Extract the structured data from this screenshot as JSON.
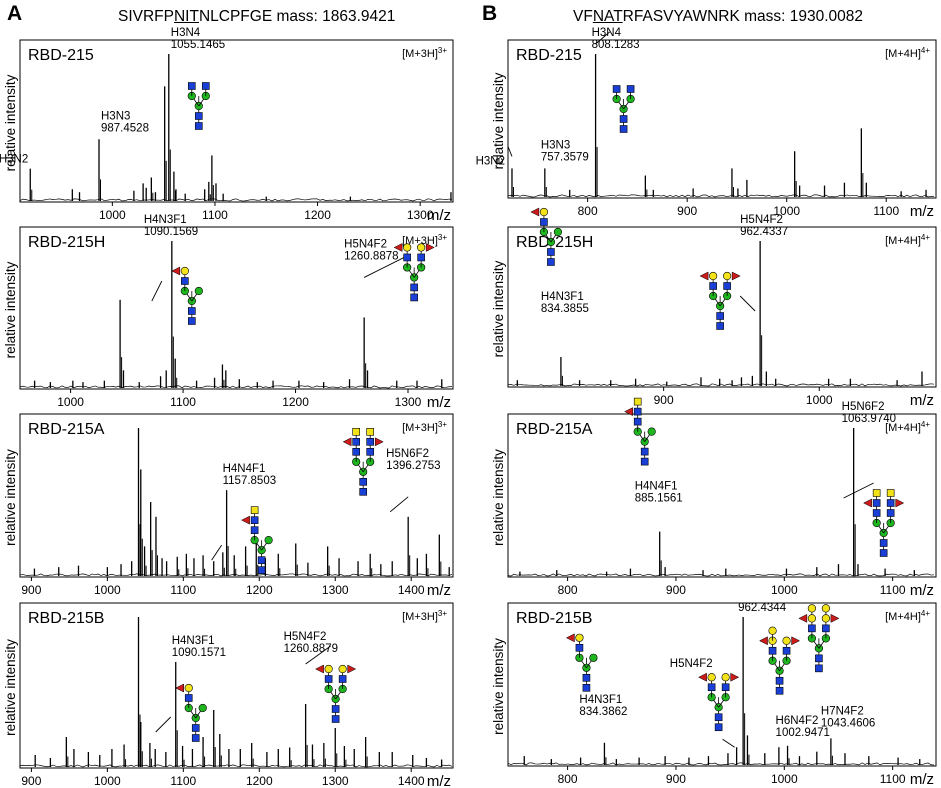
{
  "figure": {
    "col_A": {
      "letter": "A",
      "title_pre": "SIVRFP",
      "title_seq": "NIT",
      "title_post": "NLCPFGE mass: 1863.9421"
    },
    "col_B": {
      "letter": "B",
      "title_pre": "VF",
      "title_seq": "NAT",
      "title_post": "RFASVYAWNRK mass: 1930.0082"
    }
  },
  "colors": {
    "mannose": "#1fb51f",
    "glcnac": "#1a3fd6",
    "galactose": "#f2e21a",
    "fucose": "#cc1b1b",
    "line": "#000000"
  },
  "chart_data": [
    {
      "id": "A1",
      "type": "line",
      "title": "RBD-215",
      "ion": "[M+3H]",
      "charge": "3+",
      "xlabel": "m/z",
      "ylabel": "relative intensity",
      "xlim": [
        910,
        1332
      ],
      "ticks": [
        1000,
        1100,
        1200,
        1300
      ],
      "peaks": [
        [
          920,
          0.22
        ],
        [
          961,
          0.08
        ],
        [
          968,
          0.06
        ],
        [
          987,
          0.42
        ],
        [
          1021,
          0.07
        ],
        [
          1030,
          0.12
        ],
        [
          1033,
          0.09
        ],
        [
          1038,
          0.16
        ],
        [
          1042,
          0.06
        ],
        [
          1051,
          0.78
        ],
        [
          1055,
          1.0
        ],
        [
          1060,
          0.2
        ],
        [
          1062,
          0.08
        ],
        [
          1071,
          0.05
        ],
        [
          1090,
          0.08
        ],
        [
          1094,
          0.13
        ],
        [
          1097,
          0.31
        ],
        [
          1101,
          0.12
        ],
        [
          1108,
          0.05
        ],
        [
          1150,
          0.03
        ],
        [
          1232,
          0.03
        ],
        [
          1330,
          0.06
        ]
      ],
      "annotations": [
        {
          "x": 920,
          "lines": [
            "H3N2"
          ],
          "glycan": null
        },
        {
          "x": 987,
          "lines": [
            "H3N3",
            "987.4528"
          ],
          "glycan": null
        },
        {
          "x": 1055,
          "lines": [
            "H3N4",
            "1055.1465"
          ],
          "glycan": "H3N4"
        }
      ]
    },
    {
      "id": "A2",
      "type": "line",
      "title": "RBD-215H",
      "ion": "[M+3H]",
      "charge": "3+",
      "xlabel": "m/z",
      "ylabel": "relative intensity",
      "xlim": [
        955,
        1340
      ],
      "ticks": [
        1000,
        1100,
        1200,
        1300
      ],
      "peaks": [
        [
          968,
          0.05
        ],
        [
          982,
          0.04
        ],
        [
          1002,
          0.05
        ],
        [
          1011,
          0.04
        ],
        [
          1030,
          0.05
        ],
        [
          1044,
          0.6
        ],
        [
          1047,
          0.12
        ],
        [
          1061,
          0.04
        ],
        [
          1080,
          0.08
        ],
        [
          1085,
          0.12
        ],
        [
          1090,
          1.0
        ],
        [
          1093,
          0.2
        ],
        [
          1112,
          0.05
        ],
        [
          1128,
          0.07
        ],
        [
          1135,
          0.16
        ],
        [
          1138,
          0.12
        ],
        [
          1150,
          0.06
        ],
        [
          1166,
          0.04
        ],
        [
          1180,
          0.05
        ],
        [
          1203,
          0.05
        ],
        [
          1225,
          0.04
        ],
        [
          1248,
          0.06
        ],
        [
          1261,
          0.48
        ],
        [
          1264,
          0.12
        ],
        [
          1290,
          0.05
        ],
        [
          1308,
          0.05
        ],
        [
          1330,
          0.06
        ]
      ],
      "annotations": [
        {
          "x": 1090,
          "lines": [
            "H4N3F1",
            "1090.1569"
          ],
          "glycan": "H4N3F1"
        },
        {
          "x": 1261,
          "lines": [
            "H5N4F2",
            "1260.8878"
          ],
          "glycan": "H5N4F2"
        }
      ]
    },
    {
      "id": "A3",
      "type": "line",
      "title": "RBD-215A",
      "ion": "[M+3H]",
      "charge": "3+",
      "xlabel": "m/z",
      "ylabel": "relative intensity",
      "xlim": [
        885,
        1455
      ],
      "ticks": [
        900,
        1000,
        1100,
        1200,
        1300,
        1400
      ],
      "peaks": [
        [
          904,
          0.05
        ],
        [
          936,
          0.06
        ],
        [
          962,
          0.07
        ],
        [
          1000,
          0.06
        ],
        [
          1018,
          0.08
        ],
        [
          1032,
          0.1
        ],
        [
          1041,
          1.0
        ],
        [
          1044,
          0.72
        ],
        [
          1049,
          0.2
        ],
        [
          1057,
          0.5
        ],
        [
          1064,
          0.4
        ],
        [
          1072,
          0.12
        ],
        [
          1078,
          0.1
        ],
        [
          1092,
          0.13
        ],
        [
          1104,
          0.15
        ],
        [
          1114,
          0.12
        ],
        [
          1126,
          0.14
        ],
        [
          1140,
          0.1
        ],
        [
          1152,
          0.16
        ],
        [
          1157,
          0.58
        ],
        [
          1167,
          0.14
        ],
        [
          1182,
          0.2
        ],
        [
          1196,
          0.22
        ],
        [
          1208,
          0.12
        ],
        [
          1225,
          0.15
        ],
        [
          1248,
          0.22
        ],
        [
          1264,
          0.09
        ],
        [
          1290,
          0.2
        ],
        [
          1305,
          0.12
        ],
        [
          1330,
          0.1
        ],
        [
          1346,
          0.15
        ],
        [
          1360,
          0.08
        ],
        [
          1375,
          0.1
        ],
        [
          1396,
          0.4
        ],
        [
          1408,
          0.12
        ],
        [
          1420,
          0.15
        ],
        [
          1437,
          0.28
        ],
        [
          1450,
          0.06
        ]
      ],
      "annotations": [
        {
          "x": 1157,
          "lines": [
            "H4N4F1",
            "1157.8503"
          ],
          "glycan": "H4N4F1"
        },
        {
          "x": 1396,
          "lines": [
            "H5N6F2",
            "1396.2753"
          ],
          "glycan": "H5N6F2"
        }
      ]
    },
    {
      "id": "A4",
      "type": "line",
      "title": "RBD-215B",
      "ion": "[M+3H]",
      "charge": "3+",
      "xlabel": "m/z",
      "ylabel": "relative intensity",
      "xlim": [
        885,
        1455
      ],
      "ticks": [
        900,
        1000,
        1100,
        1200,
        1300,
        1400
      ],
      "peaks": [
        [
          905,
          0.08
        ],
        [
          925,
          0.06
        ],
        [
          946,
          0.2
        ],
        [
          956,
          0.12
        ],
        [
          975,
          0.1
        ],
        [
          990,
          0.08
        ],
        [
          1006,
          0.12
        ],
        [
          1022,
          0.15
        ],
        [
          1041,
          1.0
        ],
        [
          1044,
          0.3
        ],
        [
          1056,
          0.16
        ],
        [
          1063,
          0.12
        ],
        [
          1077,
          0.1
        ],
        [
          1090,
          0.7
        ],
        [
          1099,
          0.14
        ],
        [
          1112,
          0.12
        ],
        [
          1126,
          0.2
        ],
        [
          1140,
          0.38
        ],
        [
          1148,
          0.22
        ],
        [
          1160,
          0.12
        ],
        [
          1175,
          0.12
        ],
        [
          1190,
          0.16
        ],
        [
          1210,
          0.1
        ],
        [
          1225,
          0.12
        ],
        [
          1240,
          0.13
        ],
        [
          1261,
          0.42
        ],
        [
          1270,
          0.15
        ],
        [
          1285,
          0.16
        ],
        [
          1300,
          0.26
        ],
        [
          1312,
          0.14
        ],
        [
          1325,
          0.12
        ],
        [
          1340,
          0.2
        ],
        [
          1358,
          0.1
        ],
        [
          1375,
          0.1
        ],
        [
          1402,
          0.08
        ],
        [
          1420,
          0.06
        ],
        [
          1440,
          0.05
        ]
      ],
      "annotations": [
        {
          "x": 1090,
          "lines": [
            "H4N3F1",
            "1090.1571"
          ],
          "glycan": "H4N3F1"
        },
        {
          "x": 1261,
          "lines": [
            "H5N4F2",
            "1260.8879"
          ],
          "glycan": "H5N4F2"
        }
      ]
    },
    {
      "id": "B1",
      "type": "line",
      "title": "RBD-215",
      "ion": "[M+4H]",
      "charge": "4+",
      "xlabel": "m/z",
      "ylabel": "relative intensity",
      "xlim": [
        720,
        1150
      ],
      "ticks": [
        800,
        900,
        1000,
        1100
      ],
      "peaks": [
        [
          724,
          0.2
        ],
        [
          757,
          0.2
        ],
        [
          782,
          0.05
        ],
        [
          808,
          1.0
        ],
        [
          858,
          0.15
        ],
        [
          866,
          0.05
        ],
        [
          906,
          0.06
        ],
        [
          945,
          0.2
        ],
        [
          951,
          0.06
        ],
        [
          960,
          0.12
        ],
        [
          1008,
          0.32
        ],
        [
          1013,
          0.08
        ],
        [
          1038,
          0.08
        ],
        [
          1058,
          0.1
        ],
        [
          1075,
          0.48
        ],
        [
          1080,
          0.1
        ],
        [
          1115,
          0.04
        ],
        [
          1140,
          0.05
        ]
      ],
      "annotations": [
        {
          "x": 724,
          "lines": [
            "H3N2"
          ],
          "glycan": null
        },
        {
          "x": 757,
          "lines": [
            "H3N3",
            "757.3579"
          ],
          "glycan": null
        },
        {
          "x": 808,
          "lines": [
            "H3N4",
            "808.1283"
          ],
          "glycan": "H3N4"
        }
      ]
    },
    {
      "id": "B2",
      "type": "line",
      "title": "RBD-215H",
      "ion": "[M+4H]",
      "charge": "4+",
      "xlabel": "m/z",
      "ylabel": "relative intensity",
      "xlim": [
        800,
        1075
      ],
      "ticks": [
        900,
        1000
      ],
      "peaks": [
        [
          806,
          0.04
        ],
        [
          834,
          0.2
        ],
        [
          846,
          0.04
        ],
        [
          866,
          0.04
        ],
        [
          882,
          0.05
        ],
        [
          902,
          0.03
        ],
        [
          924,
          0.06
        ],
        [
          936,
          0.05
        ],
        [
          944,
          0.04
        ],
        [
          950,
          0.06
        ],
        [
          957,
          0.07
        ],
        [
          962,
          1.0
        ],
        [
          966,
          0.1
        ],
        [
          972,
          0.05
        ],
        [
          1006,
          0.05
        ],
        [
          1020,
          0.05
        ],
        [
          1050,
          0.04
        ],
        [
          1066,
          0.1
        ]
      ],
      "annotations": [
        {
          "x": 834,
          "lines": [
            "H4N3F1",
            "834.3855"
          ],
          "glycan": "H4N3F1"
        },
        {
          "x": 962,
          "lines": [
            "H5N4F2",
            "962.4337"
          ],
          "glycan": "H5N4F2"
        }
      ]
    },
    {
      "id": "B3",
      "type": "line",
      "title": "RBD-215A",
      "ion": "[M+4H]",
      "charge": "4+",
      "xlabel": "m/z",
      "ylabel": "relative intensity",
      "xlim": [
        745,
        1140
      ],
      "ticks": [
        800,
        900,
        1000,
        1100
      ],
      "peaks": [
        [
          756,
          0.03
        ],
        [
          790,
          0.04
        ],
        [
          836,
          0.03
        ],
        [
          858,
          0.05
        ],
        [
          885,
          0.3
        ],
        [
          890,
          0.06
        ],
        [
          925,
          0.04
        ],
        [
          946,
          0.05
        ],
        [
          1002,
          0.05
        ],
        [
          1030,
          0.06
        ],
        [
          1050,
          0.08
        ],
        [
          1064,
          1.0
        ],
        [
          1068,
          0.08
        ],
        [
          1093,
          0.05
        ],
        [
          1120,
          0.04
        ]
      ],
      "annotations": [
        {
          "x": 885,
          "lines": [
            "H4N4F1",
            "885.1561"
          ],
          "glycan": "H4N4F1"
        },
        {
          "x": 1064,
          "lines": [
            "H5N6F2",
            "1063.9740"
          ],
          "glycan": "H5N6F2"
        }
      ]
    },
    {
      "id": "B4",
      "type": "line",
      "title": "RBD-215B",
      "ion": "[M+4H]",
      "charge": "4+",
      "xlabel": "m/z",
      "ylabel": "relative intensity",
      "xlim": [
        745,
        1140
      ],
      "ticks": [
        800,
        900,
        1000,
        1100
      ],
      "peaks": [
        [
          760,
          0.06
        ],
        [
          785,
          0.04
        ],
        [
          812,
          0.05
        ],
        [
          834,
          0.15
        ],
        [
          845,
          0.04
        ],
        [
          866,
          0.05
        ],
        [
          890,
          0.06
        ],
        [
          912,
          0.05
        ],
        [
          930,
          0.06
        ],
        [
          948,
          0.08
        ],
        [
          956,
          0.12
        ],
        [
          962,
          1.0
        ],
        [
          966,
          0.2
        ],
        [
          982,
          0.08
        ],
        [
          995,
          0.12
        ],
        [
          1003,
          0.13
        ],
        [
          1014,
          0.06
        ],
        [
          1030,
          0.09
        ],
        [
          1043,
          0.18
        ],
        [
          1056,
          0.08
        ],
        [
          1078,
          0.06
        ],
        [
          1105,
          0.05
        ],
        [
          1125,
          0.04
        ]
      ],
      "annotations": [
        {
          "x": 834,
          "lines": [
            "H4N3F1",
            "834.3862"
          ],
          "glycan": "H4N3F1"
        },
        {
          "x": 962,
          "lines": [
            "962.4344"
          ],
          "glycan": null
        },
        {
          "x": 1003,
          "lines": [
            "H6N4F2",
            "1002.9471"
          ],
          "glycan": null
        },
        {
          "x": 1043,
          "lines": [
            "H7N4F2",
            "1043.4606"
          ],
          "glycan": null
        },
        {
          "x": 956,
          "lines": [
            "H5N4F2"
          ],
          "glycan": "H5N4F2"
        }
      ]
    }
  ]
}
